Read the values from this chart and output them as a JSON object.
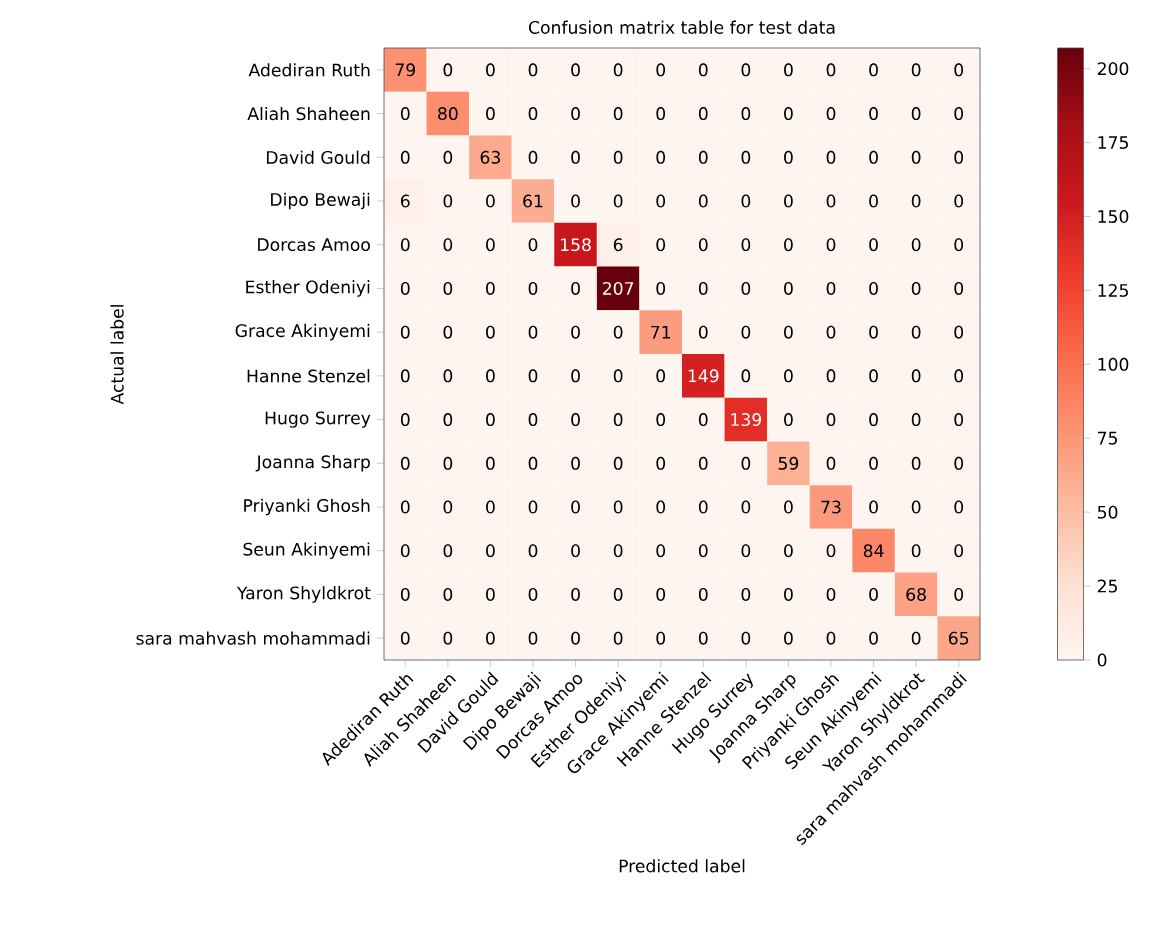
{
  "chart_data": {
    "type": "heatmap",
    "title": "Confusion matrix table for test data",
    "xlabel": "Predicted label",
    "ylabel": "Actual label",
    "categories": [
      "Adediran Ruth",
      "Aliah Shaheen",
      "David Gould",
      "Dipo Bewaji",
      "Dorcas Amoo",
      "Esther Odeniyi",
      "Grace Akinyemi",
      "Hanne Stenzel",
      "Hugo Surrey",
      "Joanna Sharp",
      "Priyanki Ghosh",
      "Seun Akinyemi",
      "Yaron Shyldkrot",
      "sara mahvash mohammadi"
    ],
    "y_categories": [
      "Adediran Ruth",
      "Aliah Shaheen",
      "David Gould",
      "Dipo Bewaji",
      "Dorcas Amoo",
      "Esther Odeniyi",
      "Grace Akinyemi",
      "Hanne Stenzel",
      "Hugo Surrey",
      "Joanna Sharp",
      "Priyanki Ghosh",
      "Seun Akinyemi",
      "Yaron Shyldkrot",
      "sara mahvash mohammadi"
    ],
    "cells": [
      [
        79,
        0,
        0,
        0,
        0,
        0,
        0,
        0,
        0,
        0,
        0,
        0,
        0,
        0
      ],
      [
        0,
        80,
        0,
        0,
        0,
        0,
        0,
        0,
        0,
        0,
        0,
        0,
        0,
        0
      ],
      [
        0,
        0,
        63,
        0,
        0,
        0,
        0,
        0,
        0,
        0,
        0,
        0,
        0,
        0
      ],
      [
        6,
        0,
        0,
        61,
        0,
        0,
        0,
        0,
        0,
        0,
        0,
        0,
        0,
        0
      ],
      [
        0,
        0,
        0,
        0,
        158,
        6,
        0,
        0,
        0,
        0,
        0,
        0,
        0,
        0
      ],
      [
        0,
        0,
        0,
        0,
        0,
        207,
        0,
        0,
        0,
        0,
        0,
        0,
        0,
        0
      ],
      [
        0,
        0,
        0,
        0,
        0,
        0,
        71,
        0,
        0,
        0,
        0,
        0,
        0,
        0
      ],
      [
        0,
        0,
        0,
        0,
        0,
        0,
        0,
        149,
        0,
        0,
        0,
        0,
        0,
        0
      ],
      [
        0,
        0,
        0,
        0,
        0,
        0,
        0,
        0,
        139,
        0,
        0,
        0,
        0,
        0
      ],
      [
        0,
        0,
        0,
        0,
        0,
        0,
        0,
        0,
        0,
        59,
        0,
        0,
        0,
        0
      ],
      [
        0,
        0,
        0,
        0,
        0,
        0,
        0,
        0,
        0,
        0,
        73,
        0,
        0,
        0
      ],
      [
        0,
        0,
        0,
        0,
        0,
        0,
        0,
        0,
        0,
        0,
        0,
        84,
        0,
        0
      ],
      [
        0,
        0,
        0,
        0,
        0,
        0,
        0,
        0,
        0,
        0,
        0,
        0,
        68,
        0
      ],
      [
        0,
        0,
        0,
        0,
        0,
        0,
        0,
        0,
        0,
        0,
        0,
        0,
        0,
        65
      ]
    ],
    "clim": [
      0,
      207
    ],
    "cticks": [
      0,
      25,
      50,
      75,
      100,
      125,
      150,
      175,
      200
    ],
    "data_labels": true
  }
}
